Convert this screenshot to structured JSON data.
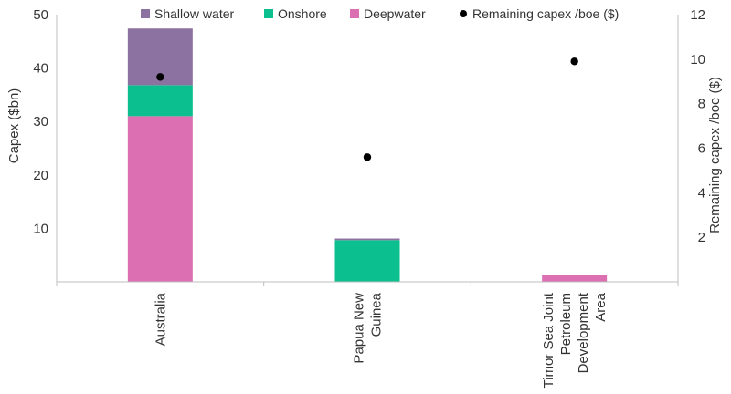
{
  "chart_data": {
    "type": "bar",
    "stacked": true,
    "categories": [
      [
        "Australia"
      ],
      [
        "Papua New",
        "Guinea"
      ],
      [
        "Timor Sea Joint",
        "Petroleum",
        "Development",
        "Area"
      ]
    ],
    "series": [
      {
        "name": "Deepwater",
        "color": "#DB6FB2",
        "values": [
          31,
          0,
          1.3
        ]
      },
      {
        "name": "Onshore",
        "color": "#0BBF8E",
        "values": [
          5.8,
          7.8,
          0
        ]
      },
      {
        "name": "Shallow water",
        "color": "#8C72A0",
        "values": [
          10.6,
          0.3,
          0
        ]
      }
    ],
    "scatter_series": {
      "name": "Remaining capex /boe ($)",
      "color": "#000000",
      "values": [
        9.2,
        5.6,
        9.9
      ]
    },
    "ylabel": "Capex ($bn)",
    "y2label": "Remaining capex /boe ($)",
    "ylim": [
      0,
      50
    ],
    "y2lim": [
      0,
      12
    ],
    "yticks": [
      10,
      20,
      30,
      40,
      50
    ],
    "y2ticks": [
      2,
      4,
      6,
      8,
      10,
      12
    ],
    "legend_order": [
      "Shallow water",
      "Onshore",
      "Deepwater",
      "Remaining capex /boe ($)"
    ],
    "legend_position": "top"
  }
}
